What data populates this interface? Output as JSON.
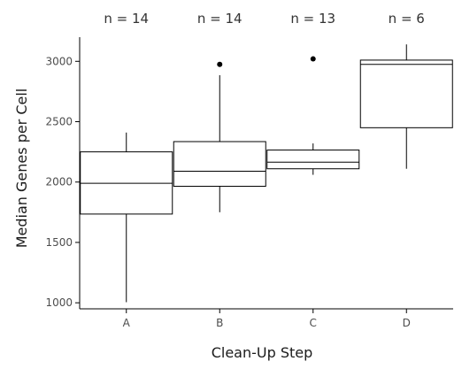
{
  "chart_data": {
    "type": "boxplot",
    "xlabel": "Clean-Up Step",
    "ylabel": "Median Genes per Cell",
    "ylim": [
      950,
      3200
    ],
    "yticks": [
      1000,
      1500,
      2000,
      2500,
      3000
    ],
    "categories": [
      "A",
      "B",
      "C",
      "D"
    ],
    "count_labels": [
      "n = 14",
      "n = 14",
      "n = 13",
      "n = 6"
    ],
    "boxes": [
      {
        "category": "A",
        "n": 14,
        "whisker_low": 1005,
        "q1": 1735,
        "median": 1990,
        "q3": 2250,
        "whisker_high": 2410,
        "outliers": []
      },
      {
        "category": "B",
        "n": 14,
        "whisker_low": 1750,
        "q1": 1965,
        "median": 2090,
        "q3": 2335,
        "whisker_high": 2885,
        "outliers": [
          2975
        ]
      },
      {
        "category": "C",
        "n": 13,
        "whisker_low": 2060,
        "q1": 2110,
        "median": 2165,
        "q3": 2265,
        "whisker_high": 2320,
        "outliers": [
          3020
        ]
      },
      {
        "category": "D",
        "n": 6,
        "whisker_low": 2110,
        "q1": 2450,
        "median": 2975,
        "q3": 3010,
        "whisker_high": 3140,
        "outliers": []
      }
    ],
    "grid": false,
    "colors": {
      "box_fill": "#ffffff",
      "stroke": "#000000",
      "text": "#333333"
    }
  }
}
